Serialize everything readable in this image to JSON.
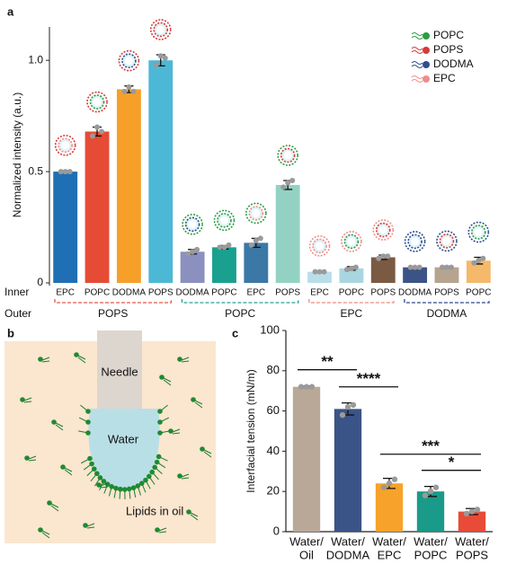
{
  "chart_data": [
    {
      "type": "bar",
      "panel_label": "a",
      "ylabel": "Normalized intensity (a.u.)",
      "ylim": [
        0,
        1.15
      ],
      "yticks": [
        0,
        0.5,
        {
          "value": 1,
          "label": "1.0"
        }
      ],
      "row_labels": [
        "Inner",
        "Outer"
      ],
      "legend": [
        {
          "name": "POPC",
          "color": "#2a9d3f"
        },
        {
          "name": "POPS",
          "color": "#d63a3a"
        },
        {
          "name": "DODMA",
          "color": "#2f4f8f"
        },
        {
          "name": "EPC",
          "color": "#f08c8c"
        }
      ],
      "groups": [
        {
          "name": "POPS",
          "color": "#e05a47",
          "categories": [
            "EPC",
            "POPC",
            "DODMA",
            "POPS"
          ],
          "values": [
            0.5,
            0.68,
            0.87,
            1.0
          ],
          "errors": [
            0.005,
            0.02,
            0.015,
            0.025
          ],
          "colors": [
            "#1f6fb4",
            "#e64b35",
            "#f6a02a",
            "#4db8d6"
          ],
          "points": [
            [
              0.5,
              0.5,
              0.5
            ],
            [
              0.66,
              0.7,
              0.68
            ],
            [
              0.86,
              0.88,
              0.86
            ],
            [
              0.98,
              1.02,
              1.01
            ]
          ]
        },
        {
          "name": "POPC",
          "color": "#2aa198",
          "categories": [
            "DODMA",
            "POPC",
            "EPC",
            "POPS"
          ],
          "values": [
            0.14,
            0.16,
            0.18,
            0.44
          ],
          "errors": [
            0.01,
            0.008,
            0.02,
            0.02
          ],
          "colors": [
            "#8b90be",
            "#19a08f",
            "#3b78a6",
            "#93d2c2"
          ],
          "points": [
            [
              0.13,
              0.14,
              0.15
            ],
            [
              0.16,
              0.16,
              0.17
            ],
            [
              0.17,
              0.19,
              0.2
            ],
            [
              0.43,
              0.45,
              0.46
            ]
          ]
        },
        {
          "name": "EPC",
          "color": "#f08a7e",
          "categories": [
            "EPC",
            "POPC",
            "POPS"
          ],
          "values": [
            0.05,
            0.065,
            0.115
          ],
          "errors": [
            0.003,
            0.008,
            0.01
          ],
          "colors": [
            "#b8dfe9",
            "#a8d6e0",
            "#7b5a43"
          ],
          "points": [
            [
              0.05,
              0.05,
              0.05
            ],
            [
              0.06,
              0.065,
              0.07
            ],
            [
              0.11,
              0.12,
              0.12
            ]
          ]
        },
        {
          "name": "DODMA",
          "color": "#2e4a8c",
          "categories": [
            "DODMA",
            "POPS",
            "POPC"
          ],
          "values": [
            0.07,
            0.07,
            0.1
          ],
          "errors": [
            0.003,
            0.005,
            0.015
          ],
          "colors": [
            "#3b5386",
            "#b6a390",
            "#f4b96b"
          ],
          "points": [
            [
              0.07,
              0.07,
              0.07
            ],
            [
              0.07,
              0.07,
              0.07
            ],
            [
              0.09,
              0.1,
              0.11
            ]
          ]
        }
      ]
    },
    {
      "type": "bar",
      "panel_label": "c",
      "ylabel": "Interfacial tension (mN/m)",
      "ylim": [
        0,
        100
      ],
      "yticks": [
        0,
        20,
        40,
        60,
        80,
        100
      ],
      "categories": [
        [
          "Water/",
          "Oil"
        ],
        [
          "Water/",
          "DODMA"
        ],
        [
          "Water/",
          "EPC"
        ],
        [
          "Water/",
          "POPC"
        ],
        [
          "Water/",
          "POPS"
        ]
      ],
      "values": [
        72,
        61,
        24,
        20,
        10
      ],
      "errors": [
        0.5,
        3,
        2.5,
        2.5,
        1.5
      ],
      "colors": [
        "#b9a898",
        "#3b5487",
        "#f7a22a",
        "#1a9a88",
        "#e84b37"
      ],
      "points": [
        [
          72,
          72,
          72
        ],
        [
          58,
          62,
          63
        ],
        [
          22,
          24,
          26
        ],
        [
          18,
          20,
          22
        ],
        [
          9,
          10,
          11
        ]
      ],
      "significance": [
        {
          "text": "**",
          "between": [
            0,
            1
          ]
        },
        {
          "text": "****",
          "between": [
            1,
            2
          ]
        },
        {
          "text": "*",
          "between": [
            3,
            4
          ]
        },
        {
          "text": "***",
          "between": [
            2,
            4
          ]
        }
      ]
    }
  ],
  "diagram": {
    "panel_label": "b",
    "needle": "Needle",
    "water": "Water",
    "oil": "Lipids in oil"
  }
}
